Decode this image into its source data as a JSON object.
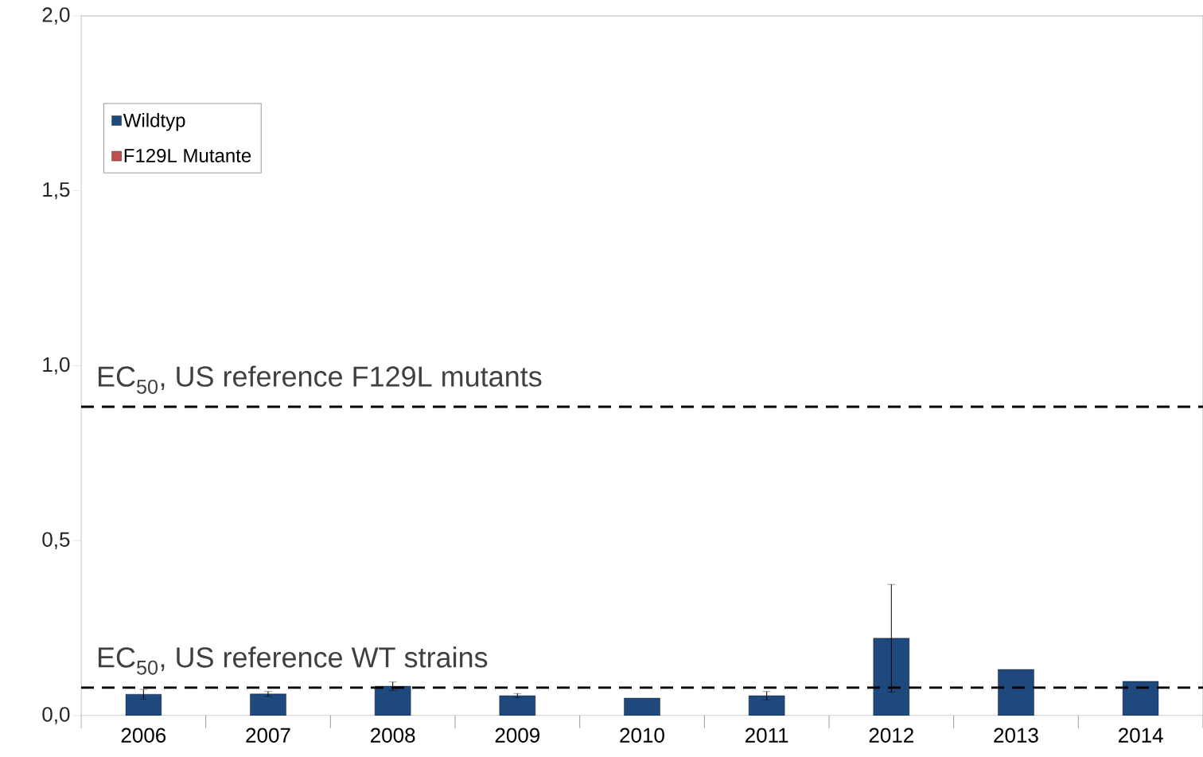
{
  "chart_data": {
    "type": "bar",
    "categories": [
      "2006",
      "2007",
      "2008",
      "2009",
      "2010",
      "2011",
      "2012",
      "2013",
      "2014"
    ],
    "series": [
      {
        "name": "Wildtyp",
        "color": "#1f497d",
        "values": [
          0.061,
          0.062,
          0.084,
          0.057,
          0.05,
          0.057,
          0.221,
          0.132,
          0.098
        ],
        "errors": [
          0.014,
          0.007,
          0.012,
          0.006,
          null,
          0.012,
          0.154,
          null,
          null
        ]
      },
      {
        "name": "F129L Mutante",
        "color": "#c0504d",
        "values": [
          null,
          null,
          null,
          null,
          null,
          null,
          null,
          null,
          null
        ]
      }
    ],
    "ylim": [
      0,
      2
    ],
    "yticks": [
      {
        "value": 0,
        "label": "0,0"
      },
      {
        "value": 0.5,
        "label": "0,5"
      },
      {
        "value": 1,
        "label": "1,0"
      },
      {
        "value": 1.5,
        "label": "1,5"
      },
      {
        "value": 2,
        "label": "2,0"
      }
    ],
    "ref_lines": [
      {
        "axis": "y",
        "value": 0.883,
        "label": "EC$_{50}$, US reference F129L mutants",
        "color": "#000000",
        "line_style": "dashed"
      },
      {
        "axis": "y",
        "value": 0.08,
        "label": "EC$_{50}$, US reference WT strains",
        "color": "#000000",
        "line_style": "dashed"
      }
    ],
    "legend": "top left",
    "grid": false
  }
}
